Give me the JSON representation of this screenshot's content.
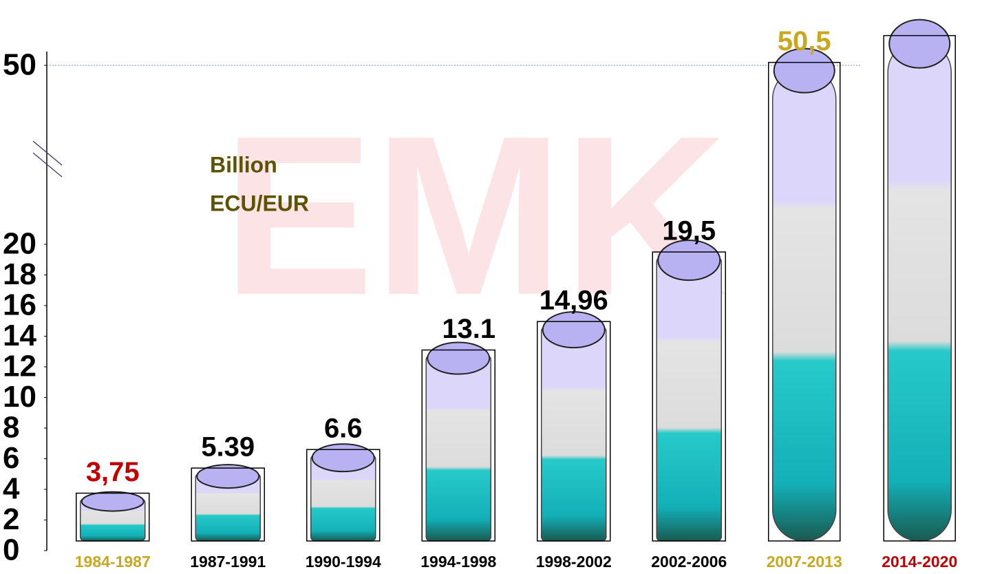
{
  "chart_data": {
    "type": "beaker",
    "watermark": "EMK",
    "annotation": [
      "Billion",
      "ECU/EUR"
    ],
    "categories": [
      "1984-1987",
      "1987-1991",
      "1990-1994",
      "1994-1998",
      "1998-2002",
      "2002-2006",
      "2007-2013",
      "2014-2020"
    ],
    "category_colors": [
      "#c8a820",
      "#000000",
      "#000000",
      "#000000",
      "#000000",
      "#000000",
      "#c8a820",
      "#c00000"
    ],
    "values": [
      3.75,
      5.39,
      6.6,
      13.1,
      14.96,
      19.5,
      50.5,
      55
    ],
    "value_labels": [
      "3,75",
      "5.39",
      "6.6",
      "13.1",
      "14,96",
      "19,5",
      "50,5",
      null
    ],
    "value_label_colors": [
      "#c00000",
      "#000000",
      "#000000",
      "#000000",
      "#000000",
      "#000000",
      "#c8a820",
      "#000000"
    ],
    "ylim": [
      0,
      54
    ],
    "yticks": [
      0,
      2,
      4,
      6,
      8,
      10,
      12,
      14,
      16,
      18,
      20,
      50
    ],
    "axis_break": true
  }
}
